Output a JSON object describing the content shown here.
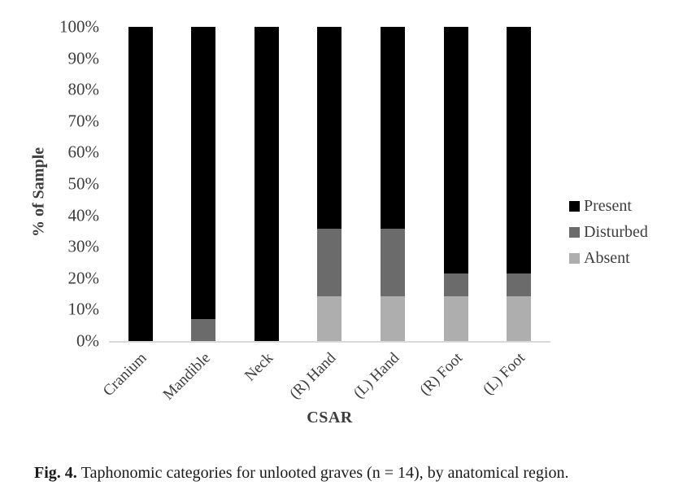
{
  "chart_data": {
    "type": "bar",
    "stacked": true,
    "categories": [
      "Cranium",
      "Mandible",
      "Neck",
      "(R) Hand",
      "(L) Hand",
      "(R) Foot",
      "(L) Foot"
    ],
    "series": [
      {
        "name": "Absent",
        "color": "#aeaeae",
        "values": [
          0,
          0,
          0,
          14.3,
          14.3,
          14.3,
          14.3
        ]
      },
      {
        "name": "Disturbed",
        "color": "#6b6b6b",
        "values": [
          0,
          7.1,
          0,
          21.4,
          21.4,
          7.1,
          7.1
        ]
      },
      {
        "name": "Present",
        "color": "#000000",
        "values": [
          100,
          92.9,
          100,
          64.3,
          64.3,
          78.6,
          78.6
        ]
      }
    ],
    "xlabel": "CSAR",
    "ylabel": "% of Sample",
    "y_ticks": [
      "0%",
      "10%",
      "20%",
      "30%",
      "40%",
      "50%",
      "60%",
      "70%",
      "80%",
      "90%",
      "100%"
    ],
    "ylim": [
      0,
      100
    ],
    "grid": false,
    "legend_position": "right",
    "legend_order": [
      "Present",
      "Disturbed",
      "Absent"
    ],
    "axis_line_color": "#d9d9d9",
    "text_color": "#3d3d3d"
  },
  "caption": {
    "label": "Fig. 4.",
    "text": "Taphonomic categories for unlooted graves (n = 14), by anatomical region."
  }
}
